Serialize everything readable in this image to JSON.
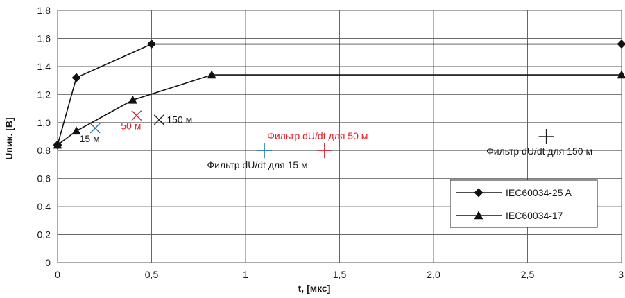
{
  "chart_data": {
    "type": "line",
    "xlabel": "t, [мкс]",
    "ylabel": "Uпик. [В]",
    "xlim": [
      0,
      3
    ],
    "ylim": [
      0,
      1.8
    ],
    "x_ticks": [
      "0",
      "0,5",
      "1",
      "1,5",
      "2,0",
      "2,5",
      "3"
    ],
    "x_tick_values": [
      0,
      0.5,
      1,
      1.5,
      2,
      2.5,
      3
    ],
    "y_ticks": [
      "0",
      "0,2",
      "0,4",
      "0,6",
      "0,8",
      "1,0",
      "1,2",
      "1,4",
      "1,6",
      "1,8"
    ],
    "y_tick_values": [
      0,
      0.2,
      0.4,
      0.6,
      0.8,
      1.0,
      1.2,
      1.4,
      1.6,
      1.8
    ],
    "grid": true,
    "legend_position": "bottom-right",
    "series": [
      {
        "name": "IEC60034-25 A",
        "marker": "diamond",
        "points": [
          [
            0,
            0.84
          ],
          [
            0.1,
            1.32
          ],
          [
            0.5,
            1.56
          ],
          [
            3,
            1.56
          ]
        ]
      },
      {
        "name": "IEC60034-17",
        "marker": "triangle",
        "points": [
          [
            0,
            0.84
          ],
          [
            0.1,
            0.94
          ],
          [
            0.4,
            1.16
          ],
          [
            0.82,
            1.34
          ],
          [
            3,
            1.34
          ]
        ]
      }
    ],
    "annotations": [
      {
        "label": "15 м",
        "marker": "x",
        "x": 0.2,
        "y": 0.96,
        "color": "#1f77b4",
        "label_pos": "below-left"
      },
      {
        "label": "50 м",
        "marker": "x",
        "x": 0.42,
        "y": 1.05,
        "color": "#e0202c",
        "label_pos": "below-left"
      },
      {
        "label": "150 м",
        "marker": "x",
        "x": 0.54,
        "y": 1.02,
        "color": "#1a1a1a",
        "label_pos": "right"
      },
      {
        "label": "Фильтр dU/dt для 15 м",
        "marker": "+",
        "x": 1.1,
        "y": 0.8,
        "color": "#1f77b4",
        "label_pos": "below"
      },
      {
        "label": "Фильтр dU/dt для 50 м",
        "marker": "+",
        "x": 1.42,
        "y": 0.8,
        "color": "#e0202c",
        "label_pos": "above"
      },
      {
        "label": "Фильтр dU/dt для 150 м",
        "marker": "+",
        "x": 2.6,
        "y": 0.9,
        "color": "#1a1a1a",
        "label_pos": "below"
      }
    ]
  }
}
